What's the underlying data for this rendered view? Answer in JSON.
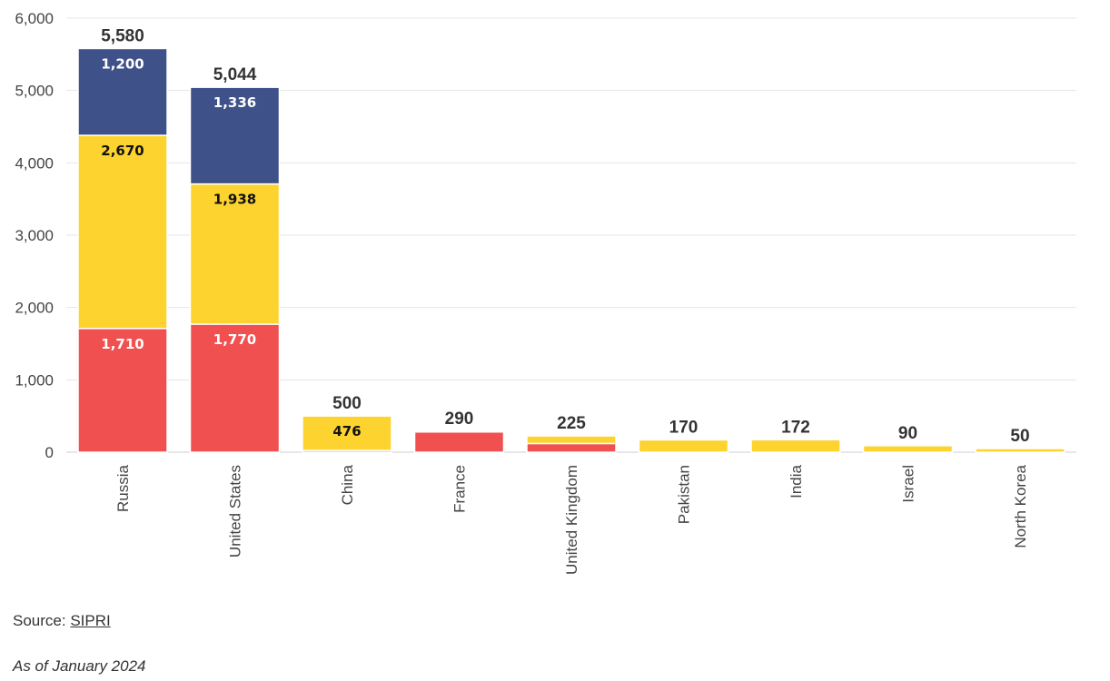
{
  "chart_data": {
    "type": "bar",
    "stacked": true,
    "title": "",
    "xlabel": "",
    "ylabel": "",
    "ylim": [
      0,
      6000
    ],
    "yticks": [
      0,
      1000,
      2000,
      3000,
      4000,
      5000,
      6000
    ],
    "ytick_labels": [
      "0",
      "1,000",
      "2,000",
      "3,000",
      "4,000",
      "5,000",
      "6,000"
    ],
    "grid": true,
    "categories": [
      "Russia",
      "United States",
      "China",
      "France",
      "United Kingdom",
      "Pakistan",
      "India",
      "Israel",
      "North Korea"
    ],
    "series": [
      {
        "name": "red",
        "color": "#f0504f",
        "values": [
          1710,
          1770,
          24,
          280,
          120,
          0,
          0,
          0,
          0
        ],
        "labels": [
          "1,710",
          "1,770",
          "",
          "",
          "",
          "",
          "",
          "",
          ""
        ],
        "label_color": "#ffffff"
      },
      {
        "name": "yellow",
        "color": "#fdd32f",
        "values": [
          2670,
          1938,
          476,
          10,
          105,
          170,
          172,
          90,
          50
        ],
        "labels": [
          "2,670",
          "1,938",
          "476",
          "",
          "",
          "",
          "",
          "",
          ""
        ],
        "label_color": "#111111"
      },
      {
        "name": "blue",
        "color": "#3f5189",
        "values": [
          1200,
          1336,
          0,
          0,
          0,
          0,
          0,
          0,
          0
        ],
        "labels": [
          "1,200",
          "1,336",
          "",
          "",
          "",
          "",
          "",
          "",
          ""
        ],
        "label_color": "#ffffff"
      }
    ],
    "totals": [
      5580,
      5044,
      500,
      290,
      225,
      170,
      172,
      90,
      50
    ],
    "total_labels": [
      "5,580",
      "5,044",
      "500",
      "290",
      "225",
      "170",
      "172",
      "90",
      "50"
    ]
  },
  "footer": {
    "source_prefix": "Source: ",
    "source_link": "SIPRI",
    "note": "As of January 2024"
  }
}
